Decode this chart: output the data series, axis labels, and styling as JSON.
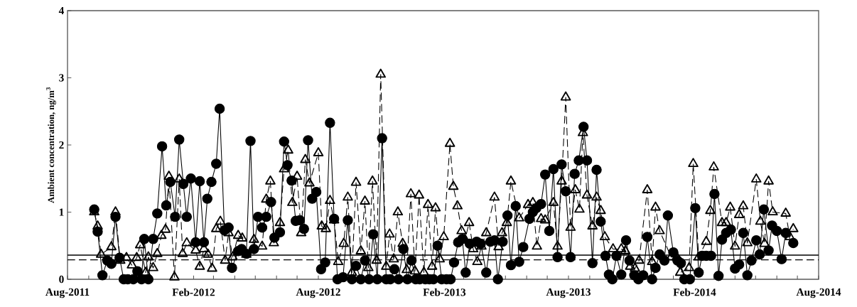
{
  "chart_data": {
    "type": "line",
    "ylabel": "Ambient concentration, ng/m$^{3}$",
    "xlim": [
      "2011-08-01",
      "2014-08-01"
    ],
    "ylim": [
      0,
      4
    ],
    "yticks": [
      0,
      1,
      2,
      3,
      4
    ],
    "xticks": [
      {
        "value": "2011-08-01",
        "label": "Aug-2011"
      },
      {
        "value": "2011-09-01",
        "label": null
      },
      {
        "value": "2011-10-01",
        "label": null
      },
      {
        "value": "2011-11-01",
        "label": null
      },
      {
        "value": "2011-12-01",
        "label": null
      },
      {
        "value": "2012-01-01",
        "label": null
      },
      {
        "value": "2012-02-01",
        "label": "Feb-2012"
      },
      {
        "value": "2012-03-01",
        "label": null
      },
      {
        "value": "2012-04-01",
        "label": null
      },
      {
        "value": "2012-05-01",
        "label": null
      },
      {
        "value": "2012-06-01",
        "label": null
      },
      {
        "value": "2012-07-01",
        "label": null
      },
      {
        "value": "2012-08-01",
        "label": "Aug-2012"
      },
      {
        "value": "2012-09-01",
        "label": null
      },
      {
        "value": "2012-10-01",
        "label": null
      },
      {
        "value": "2012-11-01",
        "label": null
      },
      {
        "value": "2012-12-01",
        "label": null
      },
      {
        "value": "2013-01-01",
        "label": null
      },
      {
        "value": "2013-02-01",
        "label": "Feb-2013"
      },
      {
        "value": "2013-03-01",
        "label": null
      },
      {
        "value": "2013-04-01",
        "label": null
      },
      {
        "value": "2013-05-01",
        "label": null
      },
      {
        "value": "2013-06-01",
        "label": null
      },
      {
        "value": "2013-07-01",
        "label": null
      },
      {
        "value": "2013-08-01",
        "label": "Aug-2013"
      },
      {
        "value": "2013-09-01",
        "label": null
      },
      {
        "value": "2013-10-01",
        "label": null
      },
      {
        "value": "2013-11-01",
        "label": null
      },
      {
        "value": "2013-12-01",
        "label": null
      },
      {
        "value": "2014-01-01",
        "label": null
      },
      {
        "value": "2014-02-01",
        "label": "Feb-2014"
      },
      {
        "value": "2014-03-01",
        "label": null
      },
      {
        "value": "2014-04-01",
        "label": null
      },
      {
        "value": "2014-05-01",
        "label": null
      },
      {
        "value": "2014-06-01",
        "label": null
      },
      {
        "value": "2014-07-01",
        "label": null
      },
      {
        "value": "2014-08-01",
        "label": "Aug-2014"
      }
    ],
    "grid": false,
    "ref_lines": [
      {
        "axis": "y",
        "value": 0.36,
        "label": null,
        "color": "#000000",
        "line_style": "solid"
      },
      {
        "axis": "y",
        "value": 0.29,
        "label": null,
        "color": "#000000",
        "line_style": "dashed"
      }
    ],
    "series": [
      {
        "color": "#000000",
        "marker": "circle",
        "line_style": "solid",
        "x": [
          "2011-09-09",
          "2011-09-14",
          "2011-09-21",
          "2011-09-28",
          "2011-10-04",
          "2011-10-10",
          "2011-10-16",
          "2011-10-22",
          "2011-10-28",
          "2011-11-05",
          "2011-11-11",
          "2011-11-17",
          "2011-11-21",
          "2011-11-27",
          "2011-12-04",
          "2011-12-10",
          "2011-12-17",
          "2011-12-23",
          "2011-12-29",
          "2012-01-05",
          "2012-01-11",
          "2012-01-17",
          "2012-01-22",
          "2012-01-28",
          "2012-02-04",
          "2012-02-10",
          "2012-02-16",
          "2012-02-21",
          "2012-02-27",
          "2012-03-05",
          "2012-03-10",
          "2012-03-17",
          "2012-03-23",
          "2012-03-28",
          "2012-04-06",
          "2012-04-11",
          "2012-04-18",
          "2012-04-24",
          "2012-04-29",
          "2012-05-05",
          "2012-05-11",
          "2012-05-17",
          "2012-05-24",
          "2012-05-29",
          "2012-06-06",
          "2012-06-12",
          "2012-06-17",
          "2012-06-23",
          "2012-06-29",
          "2012-07-05",
          "2012-07-11",
          "2012-07-17",
          "2012-07-23",
          "2012-07-29",
          "2012-08-05",
          "2012-08-11",
          "2012-08-18",
          "2012-08-24",
          "2012-08-29",
          "2012-09-06",
          "2012-09-13",
          "2012-09-19",
          "2012-09-25",
          "2012-10-02",
          "2012-10-08",
          "2012-10-14",
          "2012-10-20",
          "2012-10-26",
          "2012-11-02",
          "2012-11-08",
          "2012-11-14",
          "2012-11-20",
          "2012-11-26",
          "2012-12-03",
          "2012-12-09",
          "2012-12-15",
          "2012-12-21",
          "2012-12-27",
          "2013-01-04",
          "2013-01-10",
          "2013-01-16",
          "2013-01-22",
          "2013-01-28",
          "2013-02-04",
          "2013-02-10",
          "2013-02-15",
          "2013-02-21",
          "2013-02-27",
          "2013-03-04",
          "2013-03-10",
          "2013-03-20",
          "2013-03-26",
          "2013-04-03",
          "2013-04-09",
          "2013-04-15",
          "2013-04-20",
          "2013-04-27",
          "2013-05-04",
          "2013-05-09",
          "2013-05-16",
          "2013-05-21",
          "2013-05-27",
          "2013-06-05",
          "2013-06-10",
          "2013-06-15",
          "2013-06-22",
          "2013-06-28",
          "2013-07-04",
          "2013-07-10",
          "2013-07-16",
          "2013-07-22",
          "2013-07-28",
          "2013-08-04",
          "2013-08-10",
          "2013-08-16",
          "2013-08-23",
          "2013-08-28",
          "2013-09-05",
          "2013-09-11",
          "2013-09-17",
          "2013-09-24",
          "2013-09-29",
          "2013-10-04",
          "2013-10-10",
          "2013-10-17",
          "2013-10-24",
          "2013-10-29",
          "2013-11-05",
          "2013-11-11",
          "2013-11-18",
          "2013-11-24",
          "2013-12-01",
          "2013-12-06",
          "2013-12-12",
          "2013-12-19",
          "2013-12-24",
          "2014-01-01",
          "2014-01-07",
          "2014-01-12",
          "2014-01-17",
          "2014-01-25",
          "2014-02-02",
          "2014-02-07",
          "2014-02-12",
          "2014-02-18",
          "2014-02-25",
          "2014-03-02",
          "2014-03-08",
          "2014-03-13",
          "2014-03-19",
          "2014-03-26",
          "2014-04-01",
          "2014-04-07",
          "2014-04-13",
          "2014-04-19",
          "2014-04-25",
          "2014-05-02",
          "2014-05-07",
          "2014-05-13",
          "2014-05-20",
          "2014-05-25",
          "2014-06-01",
          "2014-06-08",
          "2014-06-14",
          "2014-06-25"
        ],
        "values": [
          1.04,
          0.71,
          0.06,
          0.28,
          0.23,
          0.93,
          0.32,
          0,
          0,
          0,
          0.12,
          0,
          0.6,
          0,
          0.6,
          0.98,
          1.98,
          1.1,
          1.45,
          0.93,
          2.08,
          1.42,
          0.93,
          1.5,
          0.55,
          1.46,
          0.55,
          1.2,
          1.45,
          1.72,
          2.54,
          0.73,
          0.77,
          0.17,
          0.42,
          0.45,
          0.38,
          2.06,
          0.45,
          0.93,
          0.77,
          0.93,
          1.15,
          0.62,
          0.7,
          2.05,
          1.7,
          1.47,
          0.87,
          0.88,
          0.75,
          2.07,
          1.2,
          1.3,
          0.15,
          0.25,
          2.33,
          0.9,
          0,
          0.03,
          0.88,
          0,
          0.2,
          0,
          0.28,
          0,
          0.67,
          0,
          2.1,
          0,
          0,
          0.15,
          0,
          0.45,
          0,
          0.28,
          0,
          0,
          0,
          0,
          0,
          0.5,
          0,
          0,
          0,
          0.25,
          0.55,
          0.6,
          0.1,
          0.53,
          0.56,
          0.53,
          0.1,
          0.56,
          0.58,
          0,
          0.56,
          0.95,
          0.21,
          1.09,
          0.26,
          0.48,
          0.9,
          1.0,
          1.06,
          1.12,
          1.56,
          0.72,
          1.64,
          0.33,
          1.71,
          1.31,
          0.33,
          1.57,
          1.77,
          2.27,
          1.77,
          0.24,
          1.63,
          0.86,
          0.35,
          0.07,
          0,
          0.35,
          0.07,
          0.58,
          0.28,
          0.06,
          0,
          0.06,
          0.63,
          0,
          0.17,
          0.37,
          0.28,
          0.95,
          0.4,
          0.28,
          0.24,
          0,
          0,
          1.06,
          0.1,
          0.35,
          0.35,
          0.35,
          1.27,
          0.05,
          0.59,
          0.69,
          0.74,
          0.16,
          0.22,
          0.69,
          0.06,
          0.28,
          0.58,
          0.37,
          1.04,
          0.43,
          0.8,
          0.72,
          0.3,
          0.69,
          0.54
        ]
      },
      {
        "color": "#000000",
        "marker": "triangle",
        "line_style": "dashed",
        "x": [
          "2011-09-09",
          "2011-09-14",
          "2011-09-19",
          "2011-10-04",
          "2011-10-10",
          "2011-10-17",
          "2011-10-26",
          "2011-11-03",
          "2011-11-10",
          "2011-11-15",
          "2011-11-23",
          "2011-11-27",
          "2011-12-04",
          "2011-12-10",
          "2011-12-16",
          "2011-12-22",
          "2011-12-27",
          "2012-01-04",
          "2012-01-11",
          "2012-01-16",
          "2012-01-22",
          "2012-02-04",
          "2012-02-10",
          "2012-02-16",
          "2012-02-22",
          "2012-02-28",
          "2012-03-05",
          "2012-03-11",
          "2012-03-18",
          "2012-03-23",
          "2012-03-29",
          "2012-04-06",
          "2012-04-12",
          "2012-04-18",
          "2012-04-29",
          "2012-05-11",
          "2012-05-17",
          "2012-05-23",
          "2012-05-28",
          "2012-06-06",
          "2012-06-12",
          "2012-06-18",
          "2012-06-24",
          "2012-07-01",
          "2012-07-07",
          "2012-07-13",
          "2012-07-19",
          "2012-08-01",
          "2012-08-06",
          "2012-08-12",
          "2012-08-18",
          "2012-08-24",
          "2012-08-30",
          "2012-09-07",
          "2012-09-13",
          "2012-09-19",
          "2012-09-25",
          "2012-10-02",
          "2012-10-08",
          "2012-10-13",
          "2012-10-19",
          "2012-10-25",
          "2012-10-31",
          "2012-11-08",
          "2012-11-13",
          "2012-11-19",
          "2012-11-25",
          "2012-12-02",
          "2012-12-08",
          "2012-12-14",
          "2012-12-20",
          "2012-12-26",
          "2013-01-02",
          "2013-01-08",
          "2013-01-14",
          "2013-01-19",
          "2013-01-25",
          "2013-01-31",
          "2013-02-09",
          "2013-02-14",
          "2013-02-20",
          "2013-02-26",
          "2013-03-03",
          "2013-03-09",
          "2013-03-15",
          "2013-03-21",
          "2013-03-27",
          "2013-04-03",
          "2013-04-15",
          "2013-04-21",
          "2013-04-26",
          "2013-05-03",
          "2013-05-09",
          "2013-05-21",
          "2013-06-03",
          "2013-06-10",
          "2013-06-16",
          "2013-06-22",
          "2013-06-28",
          "2013-07-10",
          "2013-07-16",
          "2013-07-22",
          "2013-07-28",
          "2013-08-04",
          "2013-08-11",
          "2013-08-17",
          "2013-08-22",
          "2013-08-28",
          "2013-09-05",
          "2013-09-11",
          "2013-09-17",
          "2013-09-23",
          "2013-10-05",
          "2013-10-17",
          "2013-10-23",
          "2013-10-30",
          "2013-11-06",
          "2013-11-12",
          "2013-11-24",
          "2013-12-01",
          "2013-12-06",
          "2013-12-12",
          "2013-12-29",
          "2014-01-06",
          "2014-01-11",
          "2014-01-24",
          "2014-01-30",
          "2014-02-07",
          "2014-02-18",
          "2014-02-24",
          "2014-03-01",
          "2014-03-13",
          "2014-03-19",
          "2014-03-25",
          "2014-04-01",
          "2014-04-07",
          "2014-04-13",
          "2014-04-19",
          "2014-05-02",
          "2014-05-08",
          "2014-05-14",
          "2014-05-20",
          "2014-05-26",
          "2014-06-14",
          "2014-06-20",
          "2014-06-25"
        ],
        "values": [
          1.0,
          0.79,
          0.37,
          0.48,
          1.0,
          0.28,
          0.32,
          0.21,
          0.32,
          0.51,
          0.1,
          0.33,
          0.17,
          0.38,
          0.65,
          0.74,
          1.53,
          0.03,
          1.49,
          0.38,
          0.54,
          0.43,
          0.19,
          0.45,
          0.37,
          0.16,
          0.75,
          0.86,
          0.28,
          0.69,
          0.33,
          0.65,
          0.61,
          0.37,
          0.59,
          0.49,
          1.19,
          1.46,
          0.54,
          0.84,
          1.64,
          1.92,
          1.14,
          1.53,
          0.69,
          1.78,
          1.43,
          1.88,
          0.79,
          0.75,
          1.17,
          0.88,
          0.26,
          0.53,
          1.22,
          0.1,
          1.44,
          0.42,
          1.16,
          0.17,
          1.46,
          0.28,
          3.05,
          0.19,
          0.67,
          0.3,
          1.0,
          0.53,
          0.14,
          1.27,
          0.12,
          1.25,
          0.1,
          1.11,
          0.19,
          1.06,
          0.3,
          0.63,
          2.02,
          1.38,
          1.09,
          0.72,
          0.59,
          0.84,
          0.45,
          0.26,
          0.49,
          0.69,
          1.22,
          0.48,
          0.69,
          0.84,
          1.46,
          0.91,
          1.11,
          1.14,
          0.49,
          0.9,
          0.88,
          1.14,
          0.49,
          1.46,
          2.71,
          0.77,
          1.33,
          1.04,
          2.18,
          1.25,
          0.79,
          1.22,
          1.02,
          0.63,
          0.45,
          0.45,
          0.42,
          0.19,
          0.16,
          0.28,
          1.33,
          0.26,
          1.07,
          0.72,
          0.33,
          0.33,
          0.1,
          0.17,
          1.72,
          0.33,
          0.56,
          1.02,
          1.67,
          0.84,
          0.84,
          1.07,
          0.49,
          0.96,
          1.09,
          0.54,
          1.49,
          0.86,
          0.53,
          1.46,
          1.0,
          0.98,
          0.63,
          0.75
        ]
      }
    ]
  }
}
